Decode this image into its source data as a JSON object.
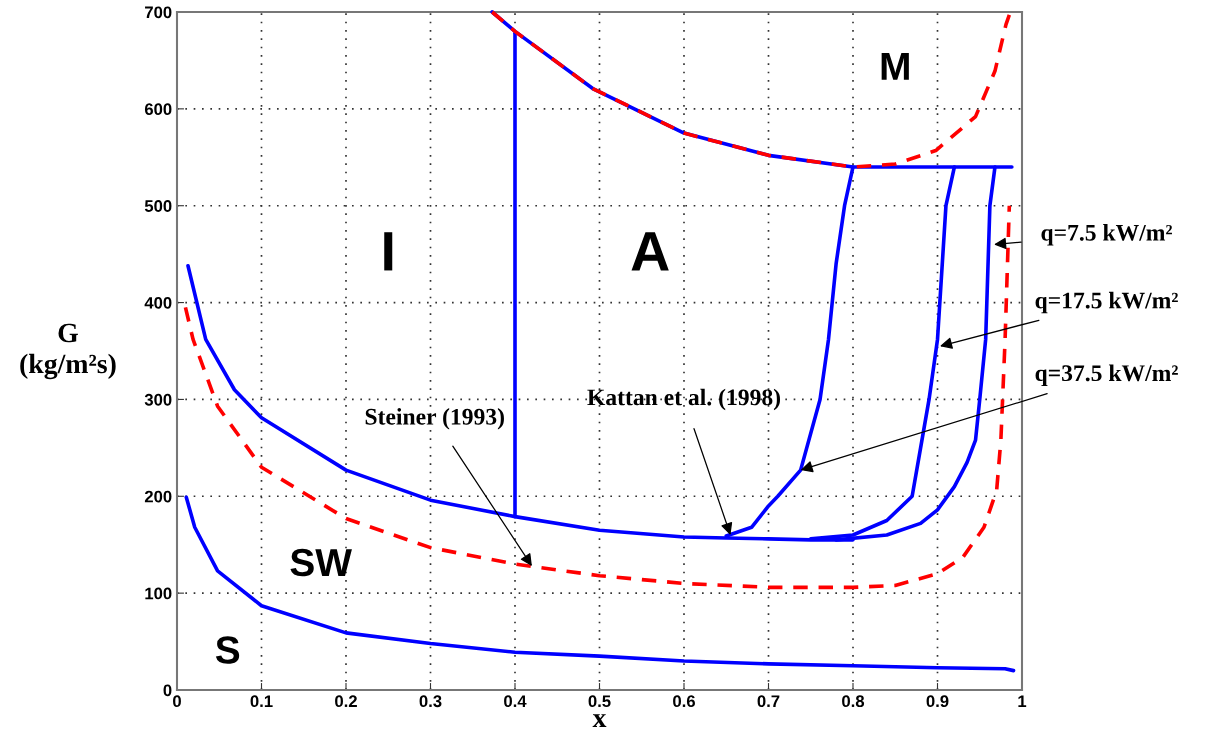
{
  "chart_data": {
    "type": "line",
    "xlabel": "x",
    "ylabel": "G\n(kg/m²s)",
    "xlim": [
      0,
      1
    ],
    "xticks": [
      0,
      0.1,
      0.2,
      0.3,
      0.4,
      0.5,
      0.6,
      0.7,
      0.8,
      0.9,
      1
    ],
    "ylim": [
      0,
      700
    ],
    "yticks": [
      0,
      100,
      200,
      300,
      400,
      500,
      600,
      700
    ],
    "grid": true,
    "marker": "none",
    "series": [
      {
        "color": "#0000ff",
        "line_style": "solid",
        "x": [
          0.013,
          0.034,
          0.068,
          0.1,
          0.2,
          0.3,
          0.4,
          0.5,
          0.6,
          0.65,
          0.7,
          0.75,
          0.8
        ],
        "values": [
          438,
          362,
          310,
          281,
          227,
          196,
          179,
          165,
          158,
          157,
          156,
          155,
          155
        ]
      },
      {
        "color": "#0000ff",
        "line_style": "solid",
        "x": [
          0.65,
          0.68,
          0.7,
          0.711,
          0.738,
          0.761,
          0.771,
          0.78,
          0.79,
          0.8
        ],
        "values": [
          159,
          168,
          190,
          200,
          227,
          300,
          362,
          440,
          500,
          540
        ]
      },
      {
        "color": "#0000ff",
        "line_style": "solid",
        "x": [
          0.75,
          0.8,
          0.84,
          0.87,
          0.88,
          0.89,
          0.9,
          0.91,
          0.92
        ],
        "values": [
          156,
          160,
          175,
          200,
          250,
          300,
          362,
          500,
          540
        ]
      },
      {
        "color": "#0000ff",
        "line_style": "solid",
        "x": [
          0.78,
          0.84,
          0.88,
          0.9,
          0.92,
          0.935,
          0.945,
          0.95,
          0.957,
          0.962,
          0.968
        ],
        "values": [
          155,
          160,
          172,
          186,
          210,
          235,
          258,
          300,
          362,
          500,
          540
        ]
      },
      {
        "color": "#0000ff",
        "line_style": "solid",
        "x": [
          0.4,
          0.4
        ],
        "values": [
          179,
          678
        ]
      },
      {
        "color": "#0000ff",
        "line_style": "solid",
        "x": [
          0.373,
          0.4,
          0.492,
          0.6,
          0.7,
          0.8,
          0.9,
          0.988
        ],
        "values": [
          700,
          680,
          621,
          575,
          552,
          540,
          540,
          540
        ]
      },
      {
        "color": "#ff0000",
        "line_style": "dashed",
        "x": [
          0.373,
          0.4,
          0.492,
          0.6,
          0.7,
          0.8,
          0.85,
          0.898,
          0.945,
          0.968,
          0.981,
          0.985
        ],
        "values": [
          700,
          680,
          621,
          575,
          552,
          540,
          543,
          557,
          592,
          639,
          687,
          697
        ]
      },
      {
        "color": "#ff0000",
        "line_style": "dashed",
        "x": [
          0.01,
          0.019,
          0.048,
          0.1,
          0.2,
          0.3,
          0.4,
          0.5,
          0.6,
          0.7,
          0.8,
          0.85,
          0.9,
          0.93,
          0.955,
          0.97,
          0.975,
          0.98,
          0.985
        ],
        "values": [
          395,
          362,
          293,
          230,
          177,
          147,
          130,
          118,
          110,
          106,
          106,
          108,
          120,
          137,
          168,
          206,
          258,
          362,
          500
        ]
      },
      {
        "color": "#0000ff",
        "line_style": "solid",
        "x": [
          0.011,
          0.021,
          0.048,
          0.1,
          0.2,
          0.3,
          0.4,
          0.5,
          0.6,
          0.7,
          0.8,
          0.9,
          0.98,
          0.99
        ],
        "values": [
          199,
          168,
          123,
          87,
          59,
          48,
          39,
          35,
          30,
          27,
          25,
          23,
          22,
          20
        ]
      }
    ],
    "annotations": [
      "M",
      "I",
      "A",
      "SW",
      "S",
      {
        "text": "Steiner (1993)",
        "x": 0.42,
        "y": 128
      },
      {
        "text": "Kattan et al. (1998)",
        "x": 0.655,
        "y": 160
      },
      {
        "text": "q=7.5 kW/m²",
        "x": 0.967,
        "y": 460
      },
      {
        "text": "q=17.5 kW/m²",
        "x": 0.903,
        "y": 355
      },
      {
        "text": "q=37.5 kW/m²",
        "x": 0.738,
        "y": 227
      }
    ]
  }
}
